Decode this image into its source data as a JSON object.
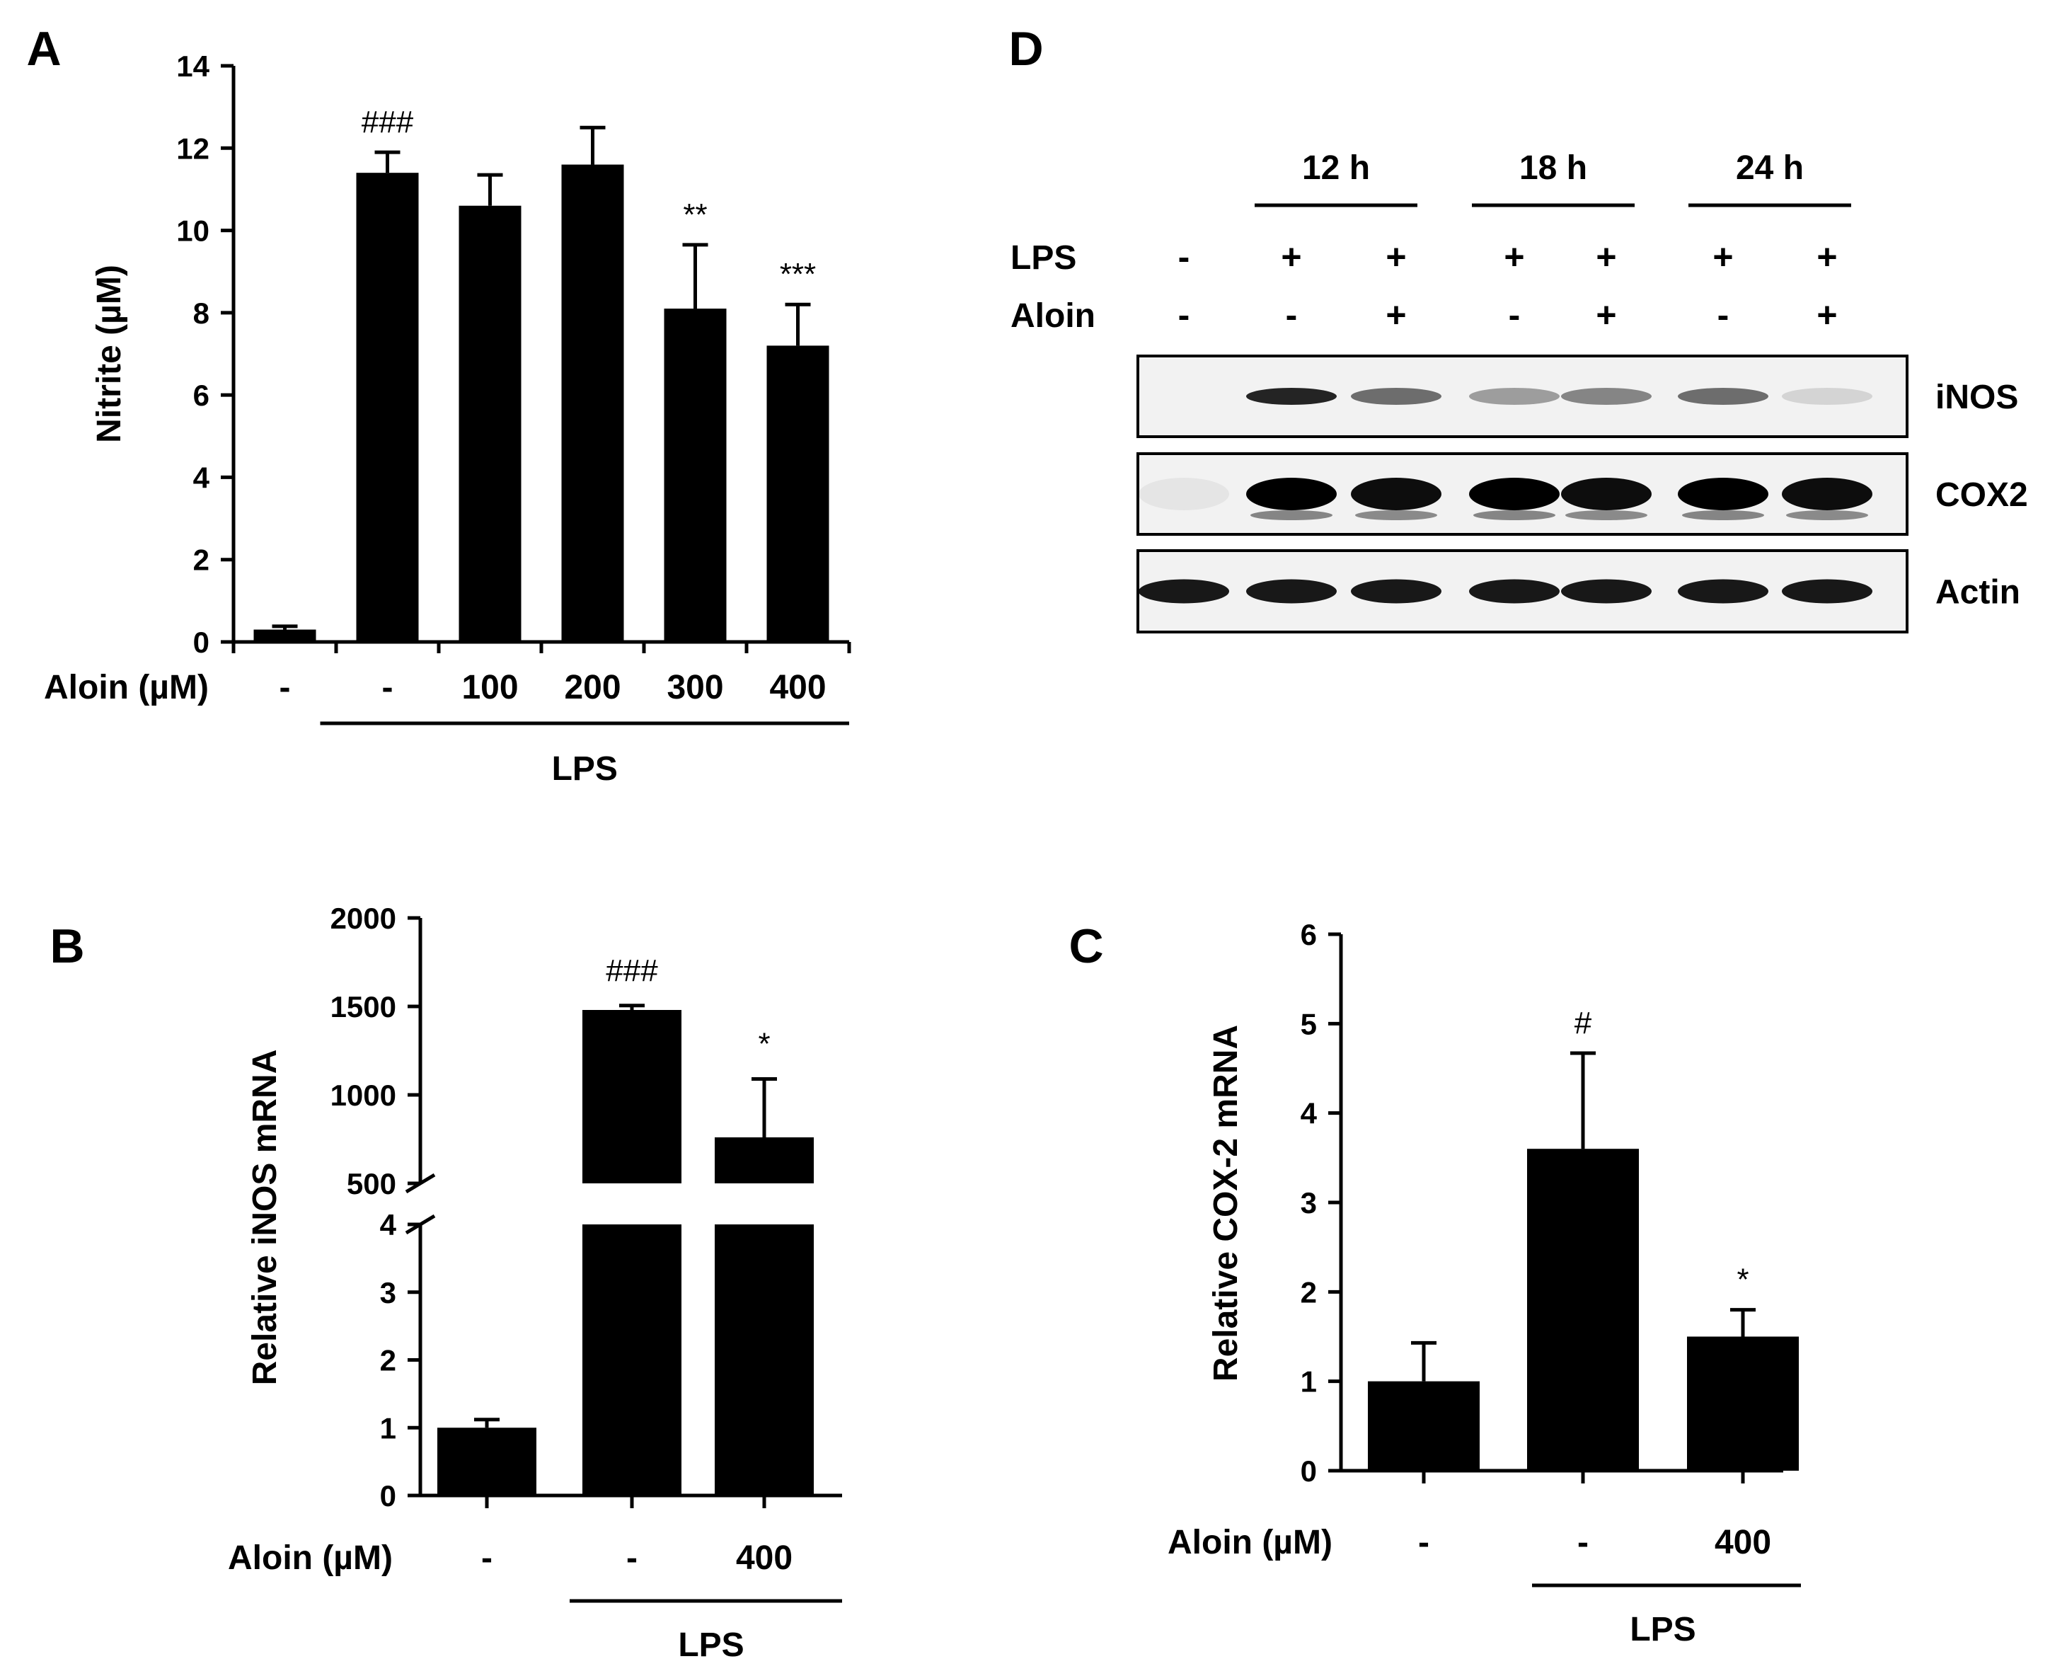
{
  "chart_data": [
    {
      "panel": "A",
      "type": "bar",
      "ylabel": "Nitrite (µM)",
      "ylim": [
        0,
        14
      ],
      "yticks": [
        0,
        2,
        4,
        6,
        8,
        10,
        12,
        14
      ],
      "categories": [
        "-",
        "-",
        "100",
        "200",
        "300",
        "400"
      ],
      "values": [
        0.3,
        11.4,
        10.6,
        11.6,
        8.1,
        7.2
      ],
      "errors": [
        0.08,
        0.5,
        0.75,
        0.9,
        1.55,
        1.0
      ],
      "annotations": [
        "",
        "###",
        "",
        "",
        "**",
        "***"
      ],
      "treatment_label": "Aloin (µM)",
      "group_label": "LPS",
      "group_indices": [
        1,
        5
      ],
      "legend": "none",
      "grid": false
    },
    {
      "panel": "B",
      "type": "bar",
      "ylabel": "Relative iNOS mRNA",
      "axis_break": true,
      "ylim_lower": [
        0,
        4
      ],
      "yticks_lower": [
        0,
        1,
        2,
        3,
        4
      ],
      "ylim_upper": [
        500,
        2000
      ],
      "yticks_upper": [
        500,
        1000,
        1500,
        2000
      ],
      "categories": [
        "-",
        "-",
        "400"
      ],
      "values": [
        1.0,
        1480,
        760
      ],
      "errors": [
        0.12,
        25,
        330
      ],
      "annotations": [
        "",
        "###",
        "*"
      ],
      "treatment_label": "Aloin (µM)",
      "group_label": "LPS",
      "group_indices": [
        1,
        2
      ],
      "legend": "none",
      "grid": false
    },
    {
      "panel": "C",
      "type": "bar",
      "ylabel": "Relative COX-2 mRNA",
      "ylim": [
        0,
        6
      ],
      "yticks": [
        0,
        1,
        2,
        3,
        4,
        5,
        6
      ],
      "categories": [
        "-",
        "-",
        "400"
      ],
      "values": [
        1.0,
        3.6,
        1.5
      ],
      "errors": [
        0.43,
        1.07,
        0.3
      ],
      "annotations": [
        "",
        "#",
        "*"
      ],
      "treatment_label": "Aloin (µM)",
      "group_label": "LPS",
      "group_indices": [
        1,
        2
      ],
      "legend": "none",
      "grid": false
    },
    {
      "panel": "D",
      "type": "blot",
      "timepoints": [
        "12 h",
        "18 h",
        "24 h"
      ],
      "row_labels": [
        "LPS",
        "Aloin"
      ],
      "lps": [
        "-",
        "+",
        "+",
        "+",
        "+",
        "+",
        "+"
      ],
      "aloin": [
        "-",
        "-",
        "+",
        "-",
        "+",
        "-",
        "+"
      ],
      "bands": [
        {
          "name": "iNOS",
          "intensity": [
            0.0,
            0.85,
            0.55,
            0.35,
            0.45,
            0.55,
            0.12
          ]
        },
        {
          "name": "COX2",
          "intensity": [
            0.05,
            1.0,
            0.95,
            1.0,
            0.95,
            1.0,
            0.95
          ]
        },
        {
          "name": "Actin",
          "intensity": [
            0.9,
            0.9,
            0.9,
            0.9,
            0.9,
            0.9,
            0.9
          ]
        }
      ]
    }
  ]
}
